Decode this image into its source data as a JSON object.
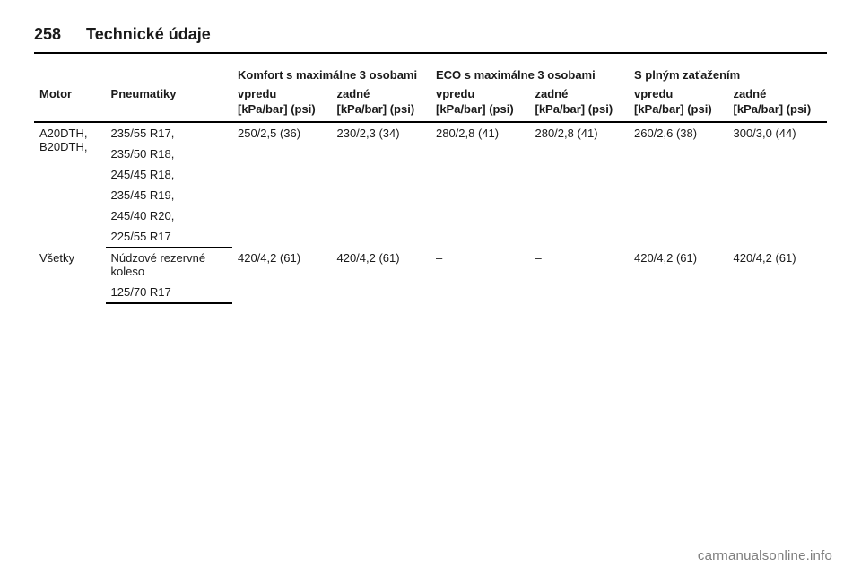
{
  "header": {
    "page_number": "258",
    "title": "Technické údaje"
  },
  "groups": [
    {
      "label": "Komfort s maximálne 3 osobami"
    },
    {
      "label": "ECO s maximálne 3 osobami"
    },
    {
      "label": "S plným zaťažením"
    }
  ],
  "col_labels": {
    "motor": "Motor",
    "pneu": "Pneumatiky",
    "front": "vpredu",
    "rear": "zadné"
  },
  "unit": "[kPa/bar] (psi)",
  "rows": {
    "r1": {
      "motor": "A20DTH, B20DTH,",
      "pneu": [
        "235/55 R17,",
        "235/50 R18,",
        "245/45 R18,",
        "235/45 R19,",
        "245/40 R20,",
        "225/55 R17"
      ],
      "vals": [
        "250/2,5 (36)",
        "230/2,3 (34)",
        "280/2,8 (41)",
        "280/2,8 (41)",
        "260/2,6 (38)",
        "300/3,0 (44)"
      ]
    },
    "r2": {
      "motor": "Všetky",
      "pneu": [
        "Núdzové rezervné koleso",
        "125/70 R17"
      ],
      "vals": [
        "420/4,2 (61)",
        "420/4,2 (61)",
        "–",
        "–",
        "420/4,2 (61)",
        "420/4,2 (61)"
      ]
    }
  },
  "footer": "carmanualsonline.info"
}
